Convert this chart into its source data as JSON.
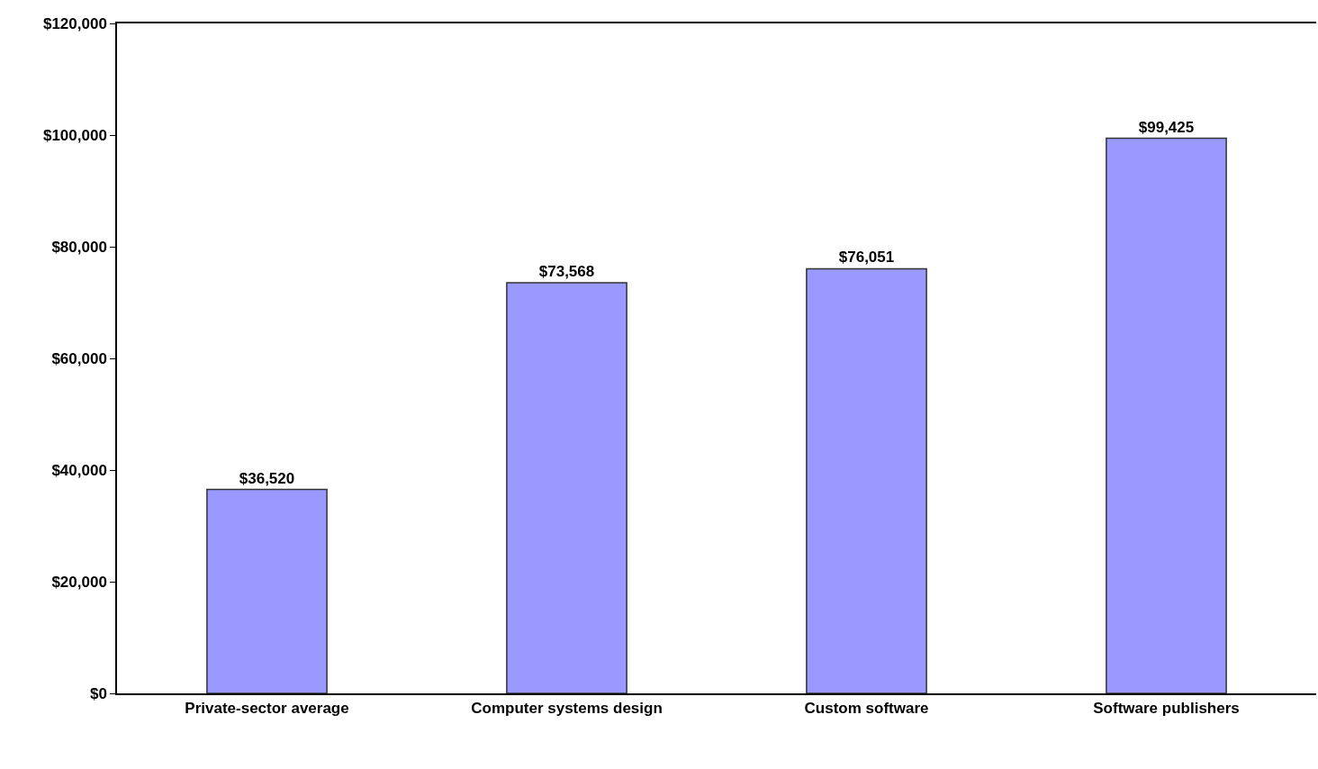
{
  "chart_data": {
    "type": "bar",
    "categories": [
      "Private-sector average",
      "Computer systems design",
      "Custom software",
      "Software publishers"
    ],
    "values": [
      36520,
      73568,
      76051,
      99425
    ],
    "value_labels": [
      "$36,520",
      "$73,568",
      "$76,051",
      "$99,425"
    ],
    "color": "#9999ff",
    "ylim": [
      0,
      120000
    ],
    "yticks": [
      {
        "value": 0,
        "label": "$0"
      },
      {
        "value": 20000,
        "label": "$20,000"
      },
      {
        "value": 40000,
        "label": "$40,000"
      },
      {
        "value": 60000,
        "label": "$60,000"
      },
      {
        "value": 80000,
        "label": "$80,000"
      },
      {
        "value": 100000,
        "label": "$100,000"
      },
      {
        "value": 120000,
        "label": "$120,000"
      }
    ],
    "grid": false
  }
}
